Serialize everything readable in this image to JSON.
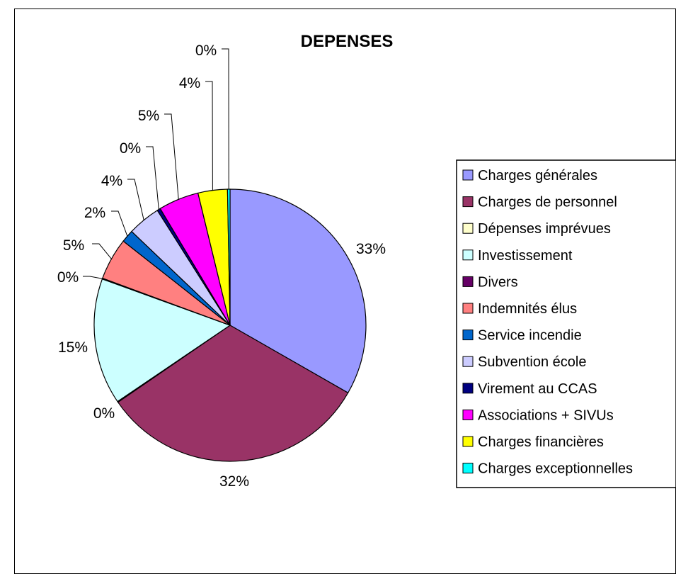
{
  "chart_data": {
    "type": "pie",
    "title": "DEPENSES",
    "slices": [
      {
        "label": "Charges générales",
        "value": 33.3,
        "display": "33%",
        "color": "#9999ff"
      },
      {
        "label": "Charges de personnel",
        "value": 32.2,
        "display": "32%",
        "color": "#993366"
      },
      {
        "label": "Dépenses imprévues",
        "value": 0.1,
        "display": "0%",
        "color": "#ffffcc"
      },
      {
        "label": "Investissement",
        "value": 15.0,
        "display": "15%",
        "color": "#ccffff"
      },
      {
        "label": "Divers",
        "value": 0.1,
        "display": "0%",
        "color": "#660066"
      },
      {
        "label": "Indemnités élus",
        "value": 5.0,
        "display": "5%",
        "color": "#ff8080"
      },
      {
        "label": "Service incendie",
        "value": 1.5,
        "display": "2%",
        "color": "#0066cc"
      },
      {
        "label": "Subvention école",
        "value": 3.9,
        "display": "4%",
        "color": "#ccccff"
      },
      {
        "label": "Virement au CCAS",
        "value": 0.4,
        "display": "0%",
        "color": "#000080"
      },
      {
        "label": "Associations + SIVUs",
        "value": 4.8,
        "display": "5%",
        "color": "#ff00ff"
      },
      {
        "label": "Charges financières",
        "value": 3.5,
        "display": "4%",
        "color": "#ffff00"
      },
      {
        "label": "Charges exceptionnelles",
        "value": 0.3,
        "display": "0%",
        "color": "#00ffff"
      }
    ],
    "legend_position": "right"
  }
}
